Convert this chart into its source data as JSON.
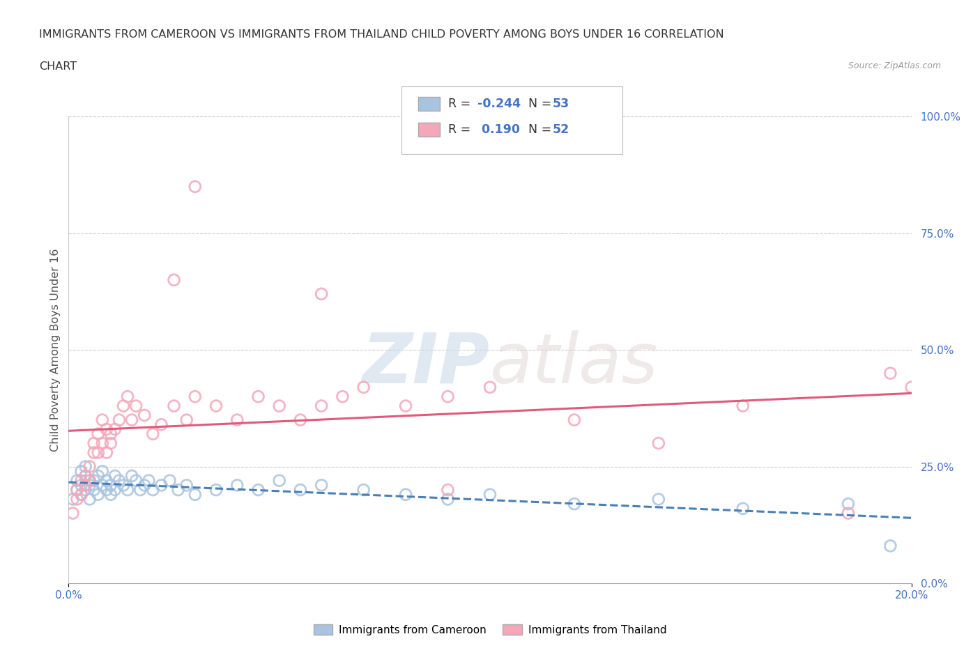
{
  "title_line1": "IMMIGRANTS FROM CAMEROON VS IMMIGRANTS FROM THAILAND CHILD POVERTY AMONG BOYS UNDER 16 CORRELATION",
  "title_line2": "CHART",
  "source": "Source: ZipAtlas.com",
  "ylabel": "Child Poverty Among Boys Under 16",
  "r_cameroon": -0.244,
  "n_cameroon": 53,
  "r_thailand": 0.19,
  "n_thailand": 52,
  "legend_label_cameroon": "Immigrants from Cameroon",
  "legend_label_thailand": "Immigrants from Thailand",
  "color_cameroon": "#a8c4e0",
  "color_thailand": "#f4a7b9",
  "trendline_color_cameroon": "#4a7fb5",
  "trendline_color_thailand": "#e05a7a",
  "background_color": "#ffffff",
  "xlim": [
    0.0,
    0.2
  ],
  "ylim": [
    0.0,
    1.0
  ],
  "yticks": [
    0.0,
    0.25,
    0.5,
    0.75,
    1.0
  ],
  "ytick_labels": [
    "0.0%",
    "25.0%",
    "50.0%",
    "75.0%",
    "100.0%"
  ],
  "xtick_positions": [
    0.0,
    0.2
  ],
  "xtick_labels": [
    "0.0%",
    "20.0%"
  ],
  "cameroon_x": [
    0.001,
    0.002,
    0.002,
    0.003,
    0.003,
    0.003,
    0.004,
    0.004,
    0.004,
    0.005,
    0.005,
    0.005,
    0.006,
    0.006,
    0.007,
    0.007,
    0.008,
    0.008,
    0.009,
    0.009,
    0.01,
    0.01,
    0.011,
    0.011,
    0.012,
    0.013,
    0.014,
    0.015,
    0.016,
    0.017,
    0.018,
    0.019,
    0.02,
    0.022,
    0.024,
    0.026,
    0.028,
    0.03,
    0.035,
    0.04,
    0.045,
    0.05,
    0.055,
    0.06,
    0.07,
    0.08,
    0.09,
    0.1,
    0.12,
    0.14,
    0.16,
    0.185,
    0.195
  ],
  "cameroon_y": [
    0.18,
    0.2,
    0.22,
    0.21,
    0.24,
    0.19,
    0.2,
    0.23,
    0.25,
    0.21,
    0.22,
    0.18,
    0.2,
    0.22,
    0.23,
    0.19,
    0.21,
    0.24,
    0.2,
    0.22,
    0.19,
    0.21,
    0.23,
    0.2,
    0.22,
    0.21,
    0.2,
    0.23,
    0.22,
    0.2,
    0.21,
    0.22,
    0.2,
    0.21,
    0.22,
    0.2,
    0.21,
    0.19,
    0.2,
    0.21,
    0.2,
    0.22,
    0.2,
    0.21,
    0.2,
    0.19,
    0.18,
    0.19,
    0.17,
    0.18,
    0.16,
    0.17,
    0.08
  ],
  "thailand_x": [
    0.001,
    0.002,
    0.002,
    0.003,
    0.003,
    0.004,
    0.004,
    0.005,
    0.005,
    0.006,
    0.006,
    0.007,
    0.007,
    0.008,
    0.008,
    0.009,
    0.009,
    0.01,
    0.01,
    0.011,
    0.012,
    0.013,
    0.014,
    0.015,
    0.016,
    0.018,
    0.02,
    0.022,
    0.025,
    0.028,
    0.03,
    0.035,
    0.04,
    0.045,
    0.05,
    0.055,
    0.06,
    0.065,
    0.07,
    0.08,
    0.09,
    0.1,
    0.12,
    0.14,
    0.16,
    0.185,
    0.195,
    0.2,
    0.025,
    0.03,
    0.06,
    0.09
  ],
  "thailand_y": [
    0.15,
    0.18,
    0.2,
    0.22,
    0.19,
    0.23,
    0.21,
    0.25,
    0.22,
    0.28,
    0.3,
    0.32,
    0.28,
    0.35,
    0.3,
    0.33,
    0.28,
    0.32,
    0.3,
    0.33,
    0.35,
    0.38,
    0.4,
    0.35,
    0.38,
    0.36,
    0.32,
    0.34,
    0.38,
    0.35,
    0.4,
    0.38,
    0.35,
    0.4,
    0.38,
    0.35,
    0.38,
    0.4,
    0.42,
    0.38,
    0.4,
    0.42,
    0.35,
    0.3,
    0.38,
    0.15,
    0.45,
    0.42,
    0.65,
    0.85,
    0.62,
    0.2
  ]
}
